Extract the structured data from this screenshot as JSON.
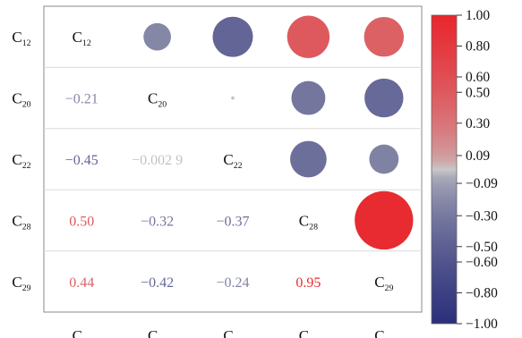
{
  "chart_data": {
    "type": "heatmap",
    "subtype": "correlation-matrix",
    "variables": [
      {
        "base": "C",
        "sub": "12"
      },
      {
        "base": "C",
        "sub": "20"
      },
      {
        "base": "C",
        "sub": "22"
      },
      {
        "base": "C",
        "sub": "28"
      },
      {
        "base": "C",
        "sub": "29"
      }
    ],
    "upper_triangle": "circles",
    "lower_triangle": "numbers",
    "values": [
      [
        null,
        -0.21,
        -0.45,
        0.5,
        0.44
      ],
      [
        -0.21,
        null,
        -0.0029,
        -0.32,
        -0.42
      ],
      [
        -0.45,
        -0.0029,
        null,
        -0.37,
        -0.24
      ],
      [
        0.5,
        -0.32,
        -0.37,
        null,
        0.95
      ],
      [
        0.44,
        -0.42,
        -0.24,
        0.95,
        null
      ]
    ],
    "lower_labels": [
      [
        "",
        "",
        "",
        "",
        ""
      ],
      [
        "−0.21",
        "",
        "",
        "",
        ""
      ],
      [
        "−0.45",
        "−0.002 9",
        "",
        "",
        ""
      ],
      [
        "0.50",
        "−0.32",
        "−0.37",
        "",
        ""
      ],
      [
        "0.44",
        "−0.42",
        "−0.24",
        "0.95",
        ""
      ]
    ],
    "colorbar": {
      "ticks": [
        1.0,
        0.8,
        0.6,
        0.5,
        0.3,
        0.09,
        -0.09,
        -0.3,
        -0.5,
        -0.6,
        -0.8,
        -1.0
      ],
      "tick_labels": [
        "1.00",
        "0.80",
        "0.60",
        "0.50",
        "0.30",
        "0.09",
        "−0.09",
        "−0.30",
        "−0.50",
        "−0.60",
        "−0.80",
        "−1.00"
      ],
      "range": [
        -1.0,
        1.0
      ]
    },
    "colors": {
      "negative": "#2b2f7a",
      "neutral": "#c8c8c8",
      "positive": "#e8262d"
    },
    "grid": true,
    "legend": "right"
  }
}
